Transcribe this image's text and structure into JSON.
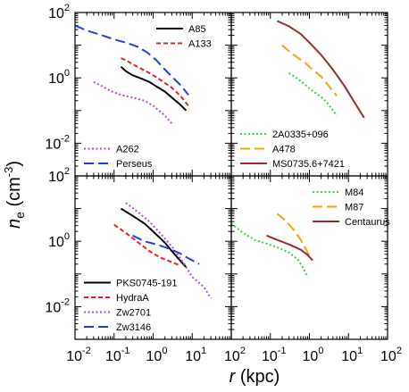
{
  "chart_data": {
    "type": "line",
    "layout": "2x2 grid of log-log panels sharing axes",
    "xscale": "log",
    "yscale": "log",
    "xlim": [
      0.01,
      100
    ],
    "ylim": [
      0.001,
      100
    ],
    "xlabel": {
      "italic": "r",
      "rest": " (kpc)"
    },
    "ylabel": {
      "base": "n",
      "sub": "e",
      "unit": " (cm",
      "sup": "-3",
      "close": ")"
    },
    "x_ticks": [
      {
        "value": 0.01,
        "base": "10",
        "exp": "-2"
      },
      {
        "value": 0.1,
        "base": "10",
        "exp": "-1"
      },
      {
        "value": 1,
        "base": "10",
        "exp": "0"
      },
      {
        "value": 10,
        "base": "10",
        "exp": "1"
      },
      {
        "value": 100,
        "base": "10",
        "exp": "2"
      }
    ],
    "y_ticks_top": [
      {
        "value": 100,
        "base": "10",
        "exp": "2"
      },
      {
        "value": 1,
        "base": "10",
        "exp": "0"
      },
      {
        "value": 0.01,
        "base": "10",
        "exp": "-2"
      }
    ],
    "y_ticks_bottom": [
      {
        "value": 100,
        "base": "10",
        "exp": "2"
      },
      {
        "value": 1,
        "base": "10",
        "exp": "0"
      },
      {
        "value": 0.01,
        "base": "10",
        "exp": "-2"
      }
    ],
    "panels": [
      {
        "position": "top-left",
        "legends": [
          {
            "placement": "top-right",
            "entries": [
              "A85",
              "A133"
            ]
          },
          {
            "placement": "bottom-left",
            "entries": [
              "A262",
              "Perseus"
            ]
          }
        ],
        "series": [
          {
            "name": "A85",
            "color": "#000000",
            "dash": "solid",
            "points": [
              [
                0.15,
                2.2
              ],
              [
                0.2,
                1.6
              ],
              [
                0.3,
                1.2
              ],
              [
                0.5,
                0.95
              ],
              [
                0.8,
                0.75
              ],
              [
                1.2,
                0.55
              ],
              [
                2,
                0.38
              ],
              [
                3,
                0.25
              ],
              [
                5,
                0.15
              ],
              [
                7,
                0.1
              ]
            ]
          },
          {
            "name": "A133",
            "color": "#e8231d",
            "dash": "short",
            "points": [
              [
                0.15,
                4
              ],
              [
                0.2,
                3.5
              ],
              [
                0.3,
                2.6
              ],
              [
                0.5,
                1.9
              ],
              [
                0.8,
                1.4
              ],
              [
                1.2,
                1.05
              ],
              [
                2,
                0.7
              ],
              [
                3,
                0.5
              ],
              [
                5,
                0.28
              ],
              [
                8,
                0.14
              ]
            ]
          },
          {
            "name": "A262",
            "color": "#b24fd8",
            "dash": "dotted",
            "points": [
              [
                0.03,
                0.75
              ],
              [
                0.05,
                0.55
              ],
              [
                0.08,
                0.4
              ],
              [
                0.15,
                0.3
              ],
              [
                0.3,
                0.25
              ],
              [
                0.6,
                0.2
              ],
              [
                1,
                0.14
              ],
              [
                2,
                0.07
              ],
              [
                3,
                0.04
              ]
            ]
          },
          {
            "name": "Perseus",
            "color": "#1f3fe0",
            "dash": "long",
            "points": [
              [
                0.01,
                40
              ],
              [
                0.02,
                28
              ],
              [
                0.05,
                20
              ],
              [
                0.1,
                15
              ],
              [
                0.2,
                12
              ],
              [
                0.4,
                9
              ],
              [
                0.7,
                6
              ],
              [
                1.2,
                3.5
              ],
              [
                2,
                1.8
              ],
              [
                3,
                1.1
              ],
              [
                5,
                0.6
              ],
              [
                8,
                0.3
              ]
            ]
          }
        ]
      },
      {
        "position": "top-right",
        "legends": [
          {
            "placement": "bottom-left",
            "entries": [
              "2A0335+096",
              "A478",
              "MS0735.6+7421"
            ]
          }
        ],
        "series": [
          {
            "name": "2A0335+096",
            "color": "#34d83a",
            "dash": "dotted",
            "points": [
              [
                0.3,
                1.4
              ],
              [
                0.5,
                0.95
              ],
              [
                0.8,
                0.6
              ],
              [
                1.2,
                0.4
              ],
              [
                2,
                0.26
              ],
              [
                3,
                0.16
              ],
              [
                5,
                0.07
              ]
            ]
          },
          {
            "name": "A478",
            "color": "#f6a40e",
            "dash": "long",
            "points": [
              [
                0.2,
                10
              ],
              [
                0.3,
                6.5
              ],
              [
                0.5,
                4.2
              ],
              [
                0.8,
                2.8
              ],
              [
                1.2,
                1.8
              ],
              [
                2,
                1.1
              ],
              [
                3,
                0.6
              ],
              [
                5,
                0.28
              ]
            ]
          },
          {
            "name": "MS0735.6+7421",
            "color": "#9b2a2a",
            "dash": "solid",
            "points": [
              [
                0.15,
                55
              ],
              [
                0.3,
                38
              ],
              [
                0.6,
                22
              ],
              [
                1,
                12
              ],
              [
                2,
                5
              ],
              [
                4,
                1.8
              ],
              [
                8,
                0.55
              ],
              [
                15,
                0.16
              ],
              [
                25,
                0.06
              ]
            ]
          }
        ]
      },
      {
        "position": "bottom-left",
        "legends": [
          {
            "placement": "bottom-left",
            "entries": [
              "PKS0745-191",
              "HydraA",
              "Zw2701",
              "Zw3146"
            ]
          }
        ],
        "series": [
          {
            "name": "PKS0745-191",
            "color": "#000000",
            "dash": "solid",
            "points": [
              [
                0.15,
                10
              ],
              [
                0.3,
                6
              ],
              [
                0.6,
                3.5
              ],
              [
                1,
                2
              ],
              [
                2,
                0.9
              ],
              [
                3,
                0.5
              ],
              [
                5,
                0.25
              ],
              [
                7,
                0.16
              ]
            ]
          },
          {
            "name": "HydraA",
            "color": "#e8231d",
            "dash": "short",
            "points": [
              [
                0.1,
                3.2
              ],
              [
                0.2,
                1.8
              ],
              [
                0.4,
                0.95
              ],
              [
                0.8,
                0.5
              ],
              [
                1.5,
                0.32
              ],
              [
                3,
                0.23
              ],
              [
                5,
                0.18
              ]
            ]
          },
          {
            "name": "Zw2701",
            "color": "#b24fd8",
            "dash": "dotted",
            "points": [
              [
                0.2,
                15
              ],
              [
                0.4,
                8
              ],
              [
                0.8,
                4
              ],
              [
                1.5,
                1.8
              ],
              [
                3,
                0.7
              ],
              [
                6,
                0.22
              ],
              [
                10,
                0.08
              ],
              [
                20,
                0.04
              ],
              [
                30,
                0.018
              ]
            ]
          },
          {
            "name": "Zw3146",
            "color": "#1f3fe0",
            "dash": "long",
            "points": [
              [
                0.3,
                1.5
              ],
              [
                0.6,
                1.0
              ],
              [
                1.2,
                0.8
              ],
              [
                2.5,
                0.6
              ],
              [
                5,
                0.42
              ],
              [
                8,
                0.3
              ],
              [
                15,
                0.2
              ]
            ]
          }
        ]
      },
      {
        "position": "bottom-right",
        "legends": [
          {
            "placement": "top-right",
            "entries": [
              "M84",
              "M87",
              "Centaurus"
            ]
          }
        ],
        "series": [
          {
            "name": "M84",
            "color": "#34d83a",
            "dash": "dotted",
            "points": [
              [
                0.01,
                3.5
              ],
              [
                0.02,
                1.8
              ],
              [
                0.04,
                1.1
              ],
              [
                0.08,
                0.85
              ],
              [
                0.15,
                0.65
              ],
              [
                0.3,
                0.45
              ],
              [
                0.5,
                0.28
              ],
              [
                0.7,
                0.15
              ],
              [
                0.9,
                0.08
              ]
            ]
          },
          {
            "name": "M87",
            "color": "#f6a40e",
            "dash": "long",
            "points": [
              [
                0.15,
                7
              ],
              [
                0.25,
                4.2
              ],
              [
                0.4,
                2.2
              ],
              [
                0.6,
                1.1
              ],
              [
                0.8,
                0.6
              ],
              [
                1.0,
                0.35
              ]
            ]
          },
          {
            "name": "Centaurus",
            "color": "#9b2a2a",
            "dash": "solid",
            "points": [
              [
                0.08,
                1.5
              ],
              [
                0.15,
                1.1
              ],
              [
                0.3,
                0.8
              ],
              [
                0.6,
                0.55
              ],
              [
                0.9,
                0.38
              ],
              [
                1.2,
                0.26
              ]
            ]
          }
        ]
      }
    ]
  }
}
